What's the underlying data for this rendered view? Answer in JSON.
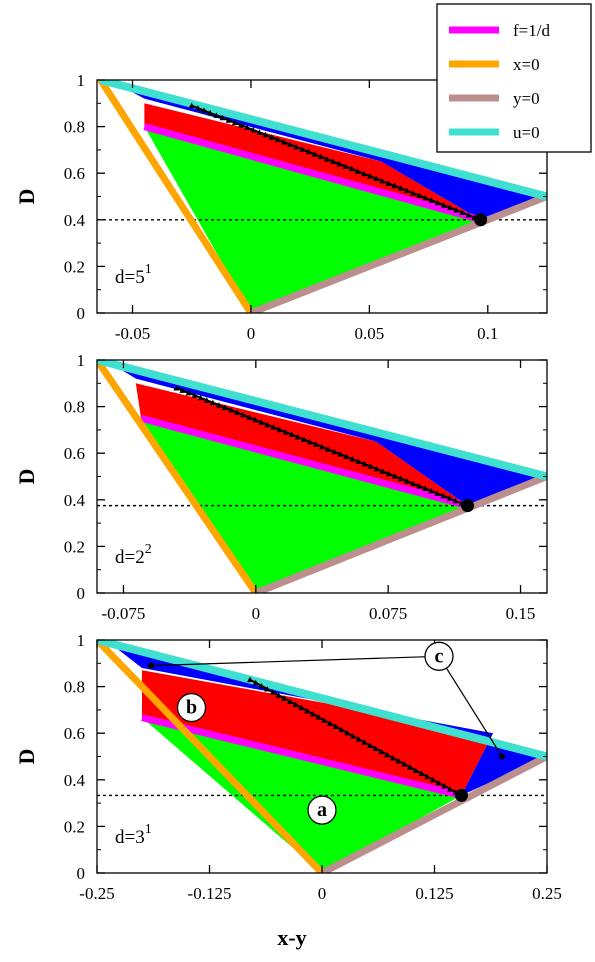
{
  "chart_data": [
    {
      "type": "area",
      "panel_label": "d=5",
      "panel_label_exp": "1",
      "xlim": [
        -0.065,
        0.125
      ],
      "ylim": [
        0,
        1
      ],
      "xticks": [
        -0.05,
        0,
        0.05,
        0.1
      ],
      "xtick_labels": [
        "-0.05",
        "0",
        "0.05",
        "0.1"
      ],
      "yticks": [
        0,
        0.2,
        0.4,
        0.6,
        0.8,
        1
      ],
      "ytick_labels": [
        "0",
        "0.2",
        "0.4",
        "0.6",
        "0.8",
        "1"
      ],
      "ylabel": "D",
      "xlabel": "",
      "hline_y": 0.4,
      "point": [
        0.097,
        0.4
      ],
      "boundaries": {
        "x0": [
          [
            -0.0635,
            1.0
          ],
          [
            0,
            0
          ]
        ],
        "y0": [
          [
            0,
            0
          ],
          [
            0.125,
            0.5
          ]
        ],
        "u0": [
          [
            -0.0635,
            1.0
          ],
          [
            0.125,
            0.5
          ]
        ],
        "f": [
          [
            -0.045,
            0.8
          ],
          [
            0.097,
            0.4
          ]
        ]
      },
      "regions": {
        "green": [
          [
            -0.045,
            0.8
          ],
          [
            0.097,
            0.4
          ],
          [
            0,
            0
          ]
        ],
        "red": [
          [
            -0.045,
            0.8
          ],
          [
            -0.045,
            0.9
          ],
          [
            0.055,
            0.65
          ],
          [
            0.097,
            0.4
          ]
        ],
        "blue": [
          [
            -0.058,
            0.99
          ],
          [
            -0.045,
            0.92
          ],
          [
            0.055,
            0.65
          ],
          [
            0.097,
            0.4
          ],
          [
            0.125,
            0.5
          ]
        ]
      },
      "trajectory": [
        [
          -0.025,
          0.89
        ],
        [
          0.097,
          0.4
        ]
      ]
    },
    {
      "type": "area",
      "panel_label": "d=2",
      "panel_label_exp": "2",
      "xlim": [
        -0.09,
        0.165
      ],
      "ylim": [
        0,
        1
      ],
      "xticks": [
        -0.075,
        0,
        0.075,
        0.15
      ],
      "xtick_labels": [
        "-0.075",
        "0",
        "0.075",
        "0.15"
      ],
      "yticks": [
        0,
        0.2,
        0.4,
        0.6,
        0.8,
        1
      ],
      "ytick_labels": [
        "0",
        "0.2",
        "0.4",
        "0.6",
        "0.8",
        "1"
      ],
      "ylabel": "D",
      "xlabel": "",
      "hline_y": 0.375,
      "point": [
        0.12,
        0.375
      ],
      "boundaries": {
        "x0": [
          [
            -0.09,
            1.0
          ],
          [
            0,
            0
          ]
        ],
        "y0": [
          [
            0,
            0
          ],
          [
            0.165,
            0.5
          ]
        ],
        "u0": [
          [
            -0.09,
            1.0
          ],
          [
            0.165,
            0.5
          ]
        ],
        "f": [
          [
            -0.065,
            0.75
          ],
          [
            0.12,
            0.375
          ]
        ]
      },
      "regions": {
        "green": [
          [
            -0.065,
            0.75
          ],
          [
            0.12,
            0.375
          ],
          [
            0,
            0
          ]
        ],
        "red": [
          [
            -0.065,
            0.75
          ],
          [
            -0.068,
            0.9
          ],
          [
            0.068,
            0.65
          ],
          [
            0.12,
            0.375
          ]
        ],
        "blue": [
          [
            -0.082,
            0.985
          ],
          [
            -0.068,
            0.92
          ],
          [
            0.068,
            0.65
          ],
          [
            0.12,
            0.375
          ],
          [
            0.165,
            0.5
          ]
        ]
      },
      "trajectory": [
        [
          -0.045,
          0.88
        ],
        [
          0.12,
          0.375
        ]
      ]
    },
    {
      "type": "area",
      "panel_label": "d=3",
      "panel_label_exp": "1",
      "xlim": [
        -0.25,
        0.25
      ],
      "ylim": [
        0,
        1
      ],
      "xticks": [
        -0.25,
        -0.125,
        0,
        0.125,
        0.25
      ],
      "xtick_labels": [
        "-0.25",
        "-0.125",
        "0",
        "0.125",
        "0.25"
      ],
      "yticks": [
        0,
        0.2,
        0.4,
        0.6,
        0.8,
        1
      ],
      "ytick_labels": [
        "0",
        "0.2",
        "0.4",
        "0.6",
        "0.8",
        "1"
      ],
      "ylabel": "D",
      "xlabel": "x-y",
      "hline_y": 0.333,
      "point": [
        0.155,
        0.333
      ],
      "boundaries": {
        "x0": [
          [
            -0.25,
            1.0
          ],
          [
            0,
            0
          ]
        ],
        "y0": [
          [
            0,
            0
          ],
          [
            0.25,
            0.5
          ]
        ],
        "u0": [
          [
            -0.25,
            1.0
          ],
          [
            0.25,
            0.5
          ]
        ],
        "f": [
          [
            -0.2,
            0.667
          ],
          [
            0.155,
            0.333
          ]
        ]
      },
      "regions": {
        "green": [
          [
            -0.2,
            0.667
          ],
          [
            0.155,
            0.333
          ],
          [
            0,
            0
          ]
        ],
        "red": [
          [
            -0.2,
            0.667
          ],
          [
            -0.2,
            0.87
          ],
          [
            0.19,
            0.6
          ],
          [
            0.155,
            0.333
          ]
        ],
        "blue": [
          [
            -0.235,
            0.985
          ],
          [
            -0.2,
            0.88
          ],
          [
            0.19,
            0.6
          ],
          [
            0.155,
            0.333
          ],
          [
            0.25,
            0.5
          ]
        ]
      },
      "trajectory": [
        [
          -0.08,
          0.83
        ],
        [
          0.155,
          0.333
        ]
      ],
      "callouts": [
        {
          "text": "a",
          "at": [
            0.0,
            0.27
          ]
        },
        {
          "text": "b",
          "at": [
            -0.145,
            0.71
          ]
        },
        {
          "text": "c",
          "at": [
            0.13,
            0.93
          ],
          "targets": [
            [
              -0.19,
              0.89
            ],
            [
              0.2,
              0.5
            ]
          ]
        }
      ]
    }
  ],
  "legend": {
    "placement": "top-right",
    "items": [
      {
        "label": "f=1/d",
        "color": "#ff00ff"
      },
      {
        "label": "x=0",
        "color": "#ffa500"
      },
      {
        "label": "y=0",
        "color": "#bc8f8f"
      },
      {
        "label": "u=0",
        "color": "#40e0d0"
      }
    ]
  },
  "colors": {
    "green": "#00ff00",
    "red": "#ff0000",
    "blue": "#0000ff",
    "magenta": "#ff00ff",
    "orange": "#ffa500",
    "tan": "#bc8f8f",
    "cyan": "#40e0d0",
    "black": "#000000"
  }
}
